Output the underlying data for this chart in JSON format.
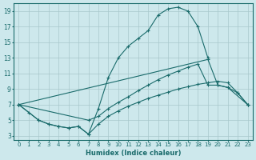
{
  "xlabel": "Humidex (Indice chaleur)",
  "bg_color": "#cde8ec",
  "grid_color": "#a8c8cc",
  "line_color": "#1a6b6b",
  "xlim": [
    -0.5,
    23.5
  ],
  "ylim": [
    2.5,
    20.0
  ],
  "xticks": [
    0,
    1,
    2,
    3,
    4,
    5,
    6,
    7,
    8,
    9,
    10,
    11,
    12,
    13,
    14,
    15,
    16,
    17,
    18,
    19,
    20,
    21,
    22,
    23
  ],
  "yticks": [
    3,
    5,
    7,
    9,
    11,
    13,
    15,
    17,
    19
  ],
  "line1_x": [
    0,
    1,
    2,
    3,
    4,
    5,
    6,
    7,
    8,
    9,
    10,
    11,
    12,
    13,
    14,
    15,
    16,
    17,
    18,
    19
  ],
  "line1_y": [
    7.0,
    6.0,
    5.0,
    4.5,
    4.2,
    4.0,
    4.2,
    3.2,
    6.5,
    10.5,
    13.0,
    14.5,
    15.5,
    16.5,
    18.5,
    19.3,
    19.5,
    19.0,
    17.0,
    13.0
  ],
  "line2_x": [
    0,
    19,
    20,
    21,
    23
  ],
  "line2_y": [
    7.0,
    12.8,
    9.5,
    9.2,
    7.0
  ],
  "line3_x": [
    0,
    7,
    8,
    9,
    10,
    11,
    12,
    13,
    14,
    15,
    16,
    17,
    18,
    19,
    20,
    21,
    22,
    23
  ],
  "line3_y": [
    7.0,
    5.0,
    5.5,
    6.5,
    7.3,
    8.0,
    8.8,
    9.5,
    10.2,
    10.8,
    11.3,
    11.8,
    12.2,
    9.5,
    9.5,
    9.2,
    8.5,
    7.0
  ],
  "line4_x": [
    0,
    2,
    3,
    4,
    5,
    6,
    7,
    8,
    9,
    10,
    11,
    12,
    13,
    14,
    15,
    16,
    17,
    18,
    19,
    20,
    21,
    22,
    23
  ],
  "line4_y": [
    7.0,
    5.0,
    4.5,
    4.2,
    4.0,
    4.2,
    3.2,
    4.5,
    5.5,
    6.2,
    6.8,
    7.3,
    7.8,
    8.2,
    8.6,
    9.0,
    9.3,
    9.6,
    9.8,
    10.0,
    9.8,
    8.5,
    7.0
  ]
}
